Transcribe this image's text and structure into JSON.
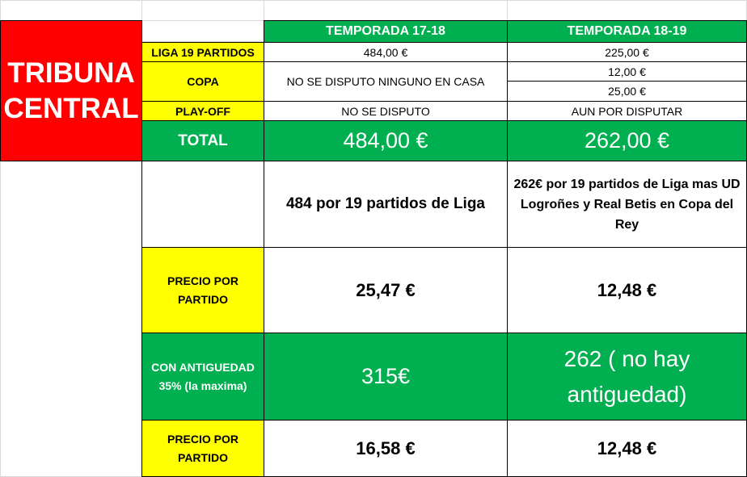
{
  "title_block": [
    "TRIBUNA",
    "CENTRAL"
  ],
  "headers": {
    "season_1": "TEMPORADA 17-18",
    "season_2": "TEMPORADA 18-19"
  },
  "rows": {
    "liga": {
      "label": "LIGA 19 PARTIDOS",
      "s1": "484,00 €",
      "s2": "225,00 €"
    },
    "copa": {
      "label": "COPA",
      "s1": "NO SE DISPUTO NINGUNO EN CASA",
      "s2_a": "12,00 €",
      "s2_b": "25,00 €"
    },
    "playoff": {
      "label": "PLAY-OFF",
      "s1": "NO SE DISPUTO",
      "s2": "AUN POR DISPUTAR"
    },
    "total": {
      "label": "TOTAL",
      "s1": "484,00 €",
      "s2": "262,00 €"
    }
  },
  "notes": {
    "s1": "484 por 19 partidos de Liga",
    "s2": "262€ por 19 partidos de Liga mas UD Logroñes y Real Betis en Copa del Rey"
  },
  "precio_1": {
    "label": "PRECIO POR PARTIDO",
    "s1": "25,47 €",
    "s2": "12,48 €"
  },
  "antiguedad": {
    "label": "CON ANTIGUEDAD 35% (la maxima)",
    "s1": "315€",
    "s2": "262 ( no hay antiguedad)"
  },
  "precio_2": {
    "label": "PRECIO POR PARTIDO",
    "s1": "16,58 €",
    "s2": "12,48 €"
  },
  "colors": {
    "red": "#ff0000",
    "green": "#00b050",
    "yellow": "#ffff00"
  }
}
